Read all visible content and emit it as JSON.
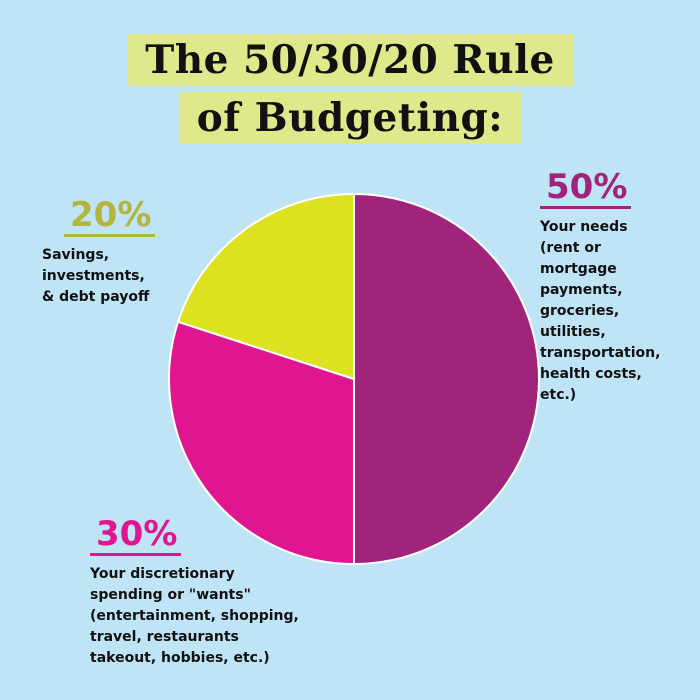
{
  "title": {
    "line1": "The 50/30/20 Rule",
    "line2": "of Budgeting:"
  },
  "colors": {
    "background": "#bfe4f6",
    "title_highlight": "#dfe98b",
    "needs": "#a0247a",
    "wants": "#e01590",
    "savings": "#dde220",
    "savings_label": "#b4b53c"
  },
  "chart_data": {
    "type": "pie",
    "slices": [
      {
        "label": "50%",
        "value": 50,
        "color": "#a0247a",
        "text_color": "#a0247a",
        "description": "Your needs\n(rent or\nmortgage\npayments,\ngroceries,\nutilities,\ntransportation,\nhealth costs,\netc.)"
      },
      {
        "label": "30%",
        "value": 30,
        "color": "#e01590",
        "text_color": "#e01590",
        "description": "Your discretionary\nspending or \"wants\"\n(entertainment, shopping,\ntravel, restaurants\ntakeout, hobbies, etc.)"
      },
      {
        "label": "20%",
        "value": 20,
        "color": "#dde220",
        "text_color": "#b4b53c",
        "description": "Savings,\ninvestments,\n& debt payoff"
      }
    ]
  }
}
